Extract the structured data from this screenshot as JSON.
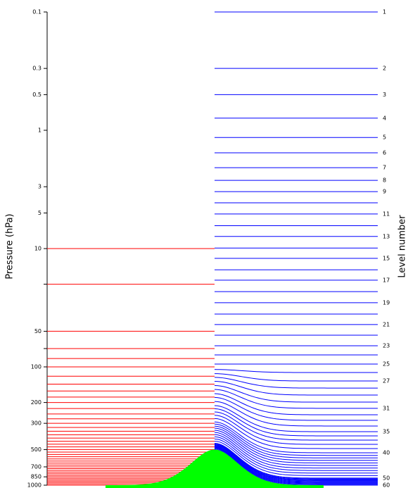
{
  "chart_data": {
    "type": "model-levels",
    "y_label": "Pressure (hPa)",
    "y2_label": "Level number",
    "log_y": true,
    "ylim": [
      0.1,
      1000
    ],
    "yticks": [
      0.1,
      0.3,
      0.5,
      1,
      3,
      5,
      10,
      50,
      100,
      200,
      300,
      500,
      700,
      850,
      1000
    ],
    "yticks_minor": [
      20,
      70
    ],
    "pressure_levels": {
      "color": "#ff0000",
      "values": [
        10,
        20,
        50,
        70,
        85,
        100,
        120,
        140,
        160,
        180,
        200,
        225,
        250,
        275,
        300,
        325,
        350,
        375,
        400,
        425,
        450,
        475,
        500,
        525,
        550,
        575,
        600,
        625,
        650,
        675,
        700,
        725,
        750,
        775,
        800,
        825,
        850,
        875,
        900,
        925,
        950,
        975,
        1000
      ]
    },
    "model_levels": {
      "color": "#0000ff",
      "values": [
        0.1,
        0.3,
        0.5,
        0.79,
        1.15,
        1.55,
        2.07,
        2.65,
        3.3,
        4.1,
        5.1,
        6.4,
        7.9,
        9.9,
        12.1,
        15.1,
        18.5,
        23.1,
        28.7,
        35.8,
        43.9,
        54,
        66.3,
        79.2,
        94.6,
        111.6,
        131.6,
        151,
        173,
        198.6,
        224,
        254,
        283,
        316,
        353,
        383,
        416,
        452,
        490,
        532,
        560,
        588,
        617,
        648,
        681,
        716,
        752,
        790,
        830,
        871,
        883,
        896,
        907,
        919,
        932,
        945,
        958,
        971,
        985,
        1000
      ]
    },
    "level_numbers_shown": [
      1,
      2,
      3,
      4,
      5,
      6,
      7,
      8,
      9,
      11,
      13,
      15,
      17,
      19,
      21,
      23,
      25,
      27,
      31,
      35,
      40,
      50,
      60
    ],
    "terrain": {
      "color": "#00ff00",
      "peak_pressure": 500
    }
  }
}
